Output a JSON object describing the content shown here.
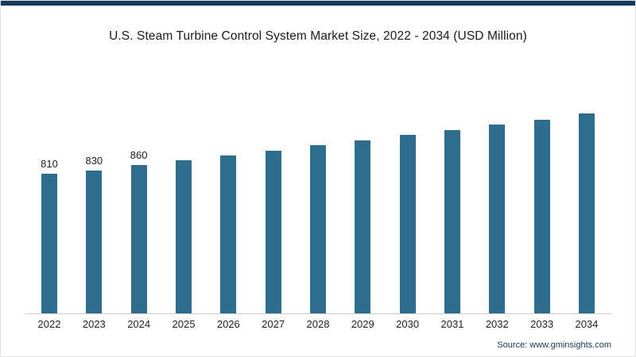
{
  "header": {
    "title": "U.S. Steam Turbine Control System Market Size, 2022 - 2034 (USD Million)"
  },
  "footer": {
    "source": "Source: www.gminsights.com"
  },
  "colors": {
    "bar": "#2e6d8e",
    "top_strip": "#16395c",
    "axis_line": "#cccccc"
  },
  "chart_data": {
    "type": "bar",
    "title": "U.S. Steam Turbine Control System Market Size, 2022 - 2034 (USD Million)",
    "xlabel": "",
    "ylabel": "USD Million",
    "categories": [
      "2022",
      "2023",
      "2024",
      "2025",
      "2026",
      "2027",
      "2028",
      "2029",
      "2030",
      "2031",
      "2032",
      "2033",
      "2034"
    ],
    "values": [
      810,
      830,
      860,
      890,
      915,
      945,
      975,
      1005,
      1035,
      1065,
      1095,
      1125,
      1160
    ],
    "data_labels": [
      "810",
      "830",
      "860",
      "",
      "",
      "",
      "",
      "",
      "",
      "",
      "",
      "",
      ""
    ],
    "ylim": [
      0,
      1200
    ],
    "grid": false,
    "legend_position": "none"
  }
}
